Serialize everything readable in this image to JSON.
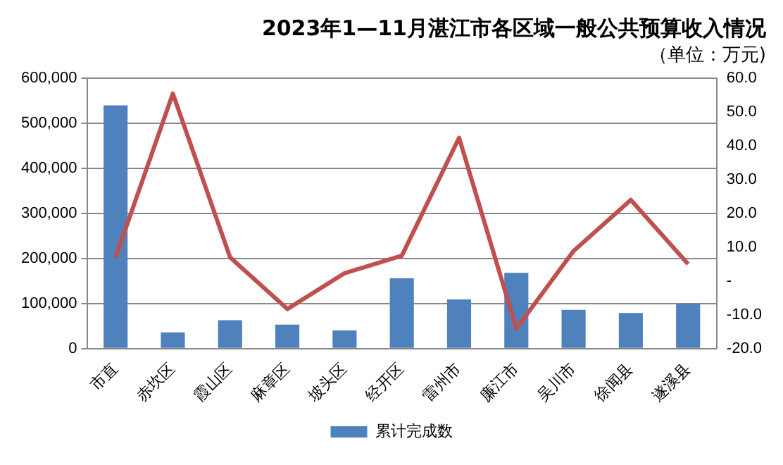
{
  "chart_data": {
    "type": "bar",
    "title": "2023年1—11月湛江市各区域一般公共预算收入情况",
    "subtitle": "（单位：万元)",
    "categories": [
      "市直",
      "赤坎区",
      "霞山区",
      "麻章区",
      "坡头区",
      "经开区",
      "雷州市",
      "廉江市",
      "吴川市",
      "徐闻县",
      "遂溪县"
    ],
    "series": [
      {
        "name": "累计完成数",
        "color": "#4f81bd",
        "values": [
          540000,
          36000,
          63000,
          53000,
          40000,
          156000,
          109000,
          168000,
          86000,
          79000,
          100000
        ]
      },
      {
        "type": "line",
        "axis": "y2",
        "color": "#c0504d",
        "values": [
          7,
          55.5,
          7,
          -8.3,
          2.3,
          7.5,
          42.4,
          -14.1,
          8.9,
          24,
          5
        ]
      }
    ],
    "ylim": [
      0,
      600000
    ],
    "yticks": [
      0,
      {
        "value": 100000,
        "label": "100,000"
      },
      {
        "value": 200000,
        "label": "200,000"
      },
      {
        "value": 300000,
        "label": "300,000"
      },
      {
        "value": 400000,
        "label": "400,000"
      },
      {
        "value": 500000,
        "label": "500,000"
      },
      {
        "value": 600000,
        "label": "600,000"
      }
    ],
    "y2lim": [
      -20,
      60
    ],
    "y2ticks": [
      {
        "value": -20,
        "label": "-20.0"
      },
      {
        "value": -10,
        "label": "-10.0"
      },
      {
        "value": 0,
        "label": "-"
      },
      {
        "value": 10,
        "label": "10.0"
      },
      {
        "value": 20,
        "label": "20.0"
      },
      {
        "value": 30,
        "label": "30.0"
      },
      {
        "value": 40,
        "label": "40.0"
      },
      {
        "value": 50,
        "label": "50.0"
      },
      {
        "value": 60,
        "label": "60.0"
      }
    ],
    "grid": "y",
    "legend": "bottom",
    "marker": "none",
    "line_style": "solid"
  }
}
